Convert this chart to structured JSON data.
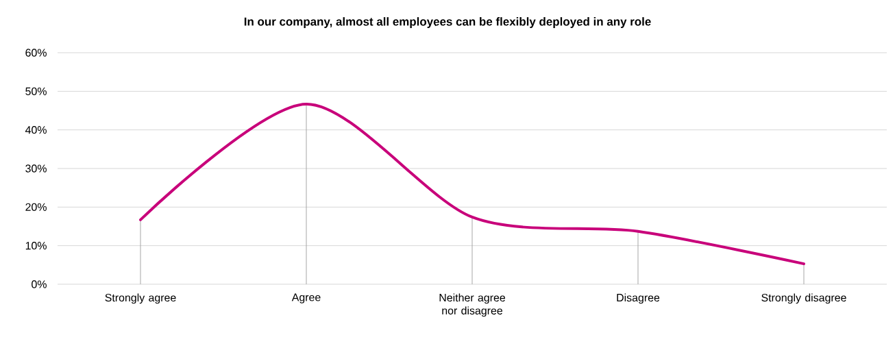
{
  "chart_data": {
    "type": "line",
    "title": "In our company, almost all employees can be flexibly deployed in any role",
    "categories": [
      "Strongly agree",
      "Agree",
      "Neither agree nor disagree",
      "Disagree",
      "Strongly disagree"
    ],
    "values": [
      16.7,
      46.7,
      17.4,
      13.7,
      5.3
    ],
    "color": "#c8007a",
    "errors": [
      [
        0,
        16.7
      ],
      [
        0,
        46.7
      ],
      [
        0,
        17.4
      ],
      [
        0,
        13.7
      ],
      [
        0,
        5.3
      ]
    ],
    "ylim": [
      0,
      60
    ],
    "yticks": [
      {
        "value": 0,
        "label": "0%"
      },
      {
        "value": 10,
        "label": "10%"
      },
      {
        "value": 20,
        "label": "20%"
      },
      {
        "value": 30,
        "label": "30%"
      },
      {
        "value": 40,
        "label": "40%"
      },
      {
        "value": 50,
        "label": "50%"
      },
      {
        "value": 60,
        "label": "60%"
      }
    ],
    "grid": "y"
  }
}
